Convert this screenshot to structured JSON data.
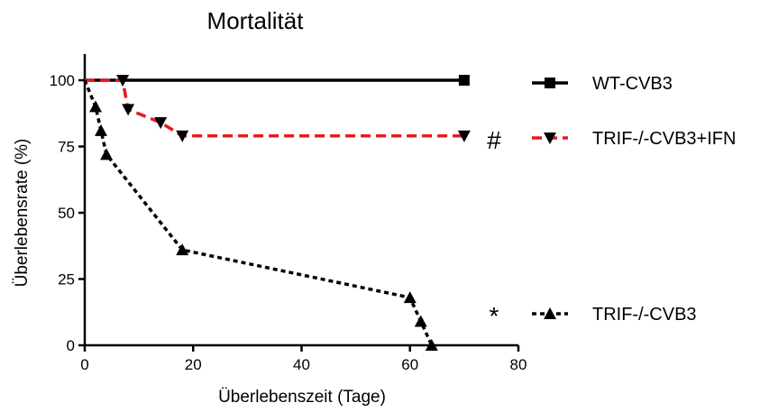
{
  "chart_data": {
    "type": "line",
    "title": "Mortalität",
    "xlabel": "Überlebenszeit (Tage)",
    "ylabel": "Überlebensrate (%)",
    "xlim": [
      0,
      80
    ],
    "ylim": [
      0,
      100
    ],
    "xticks": [
      0,
      20,
      40,
      60,
      80
    ],
    "yticks": [
      0,
      25,
      50,
      75,
      100
    ],
    "grid": false,
    "legend_position": "right",
    "series": [
      {
        "name": "WT-CVB3",
        "color": "#000000",
        "line_style": "solid",
        "marker": "square",
        "points": [
          [
            0,
            100
          ],
          [
            70,
            100
          ]
        ],
        "markers": [
          [
            70,
            100
          ]
        ],
        "annotation": ""
      },
      {
        "name": "TRIF-/-CVB3+IFN",
        "color": "#e8191e",
        "line_style": "dashed",
        "marker": "triangle-down",
        "points": [
          [
            0,
            100
          ],
          [
            7,
            100
          ],
          [
            8,
            89
          ],
          [
            14,
            84
          ],
          [
            18,
            79
          ],
          [
            70,
            79
          ]
        ],
        "markers": [
          [
            7,
            100
          ],
          [
            8,
            89
          ],
          [
            14,
            84
          ],
          [
            18,
            79
          ],
          [
            70,
            79
          ]
        ],
        "annotation": "#"
      },
      {
        "name": "TRIF-/-CVB3",
        "color": "#000000",
        "line_style": "dotted",
        "marker": "triangle-up",
        "points": [
          [
            0,
            100
          ],
          [
            2,
            90
          ],
          [
            3,
            81
          ],
          [
            4,
            72
          ],
          [
            18,
            36
          ],
          [
            60,
            18
          ],
          [
            62,
            9
          ],
          [
            64,
            0
          ]
        ],
        "markers": [
          [
            2,
            90
          ],
          [
            3,
            81
          ],
          [
            4,
            72
          ],
          [
            18,
            36
          ],
          [
            60,
            18
          ],
          [
            62,
            9
          ],
          [
            64,
            0
          ]
        ],
        "annotation": "*"
      }
    ]
  }
}
